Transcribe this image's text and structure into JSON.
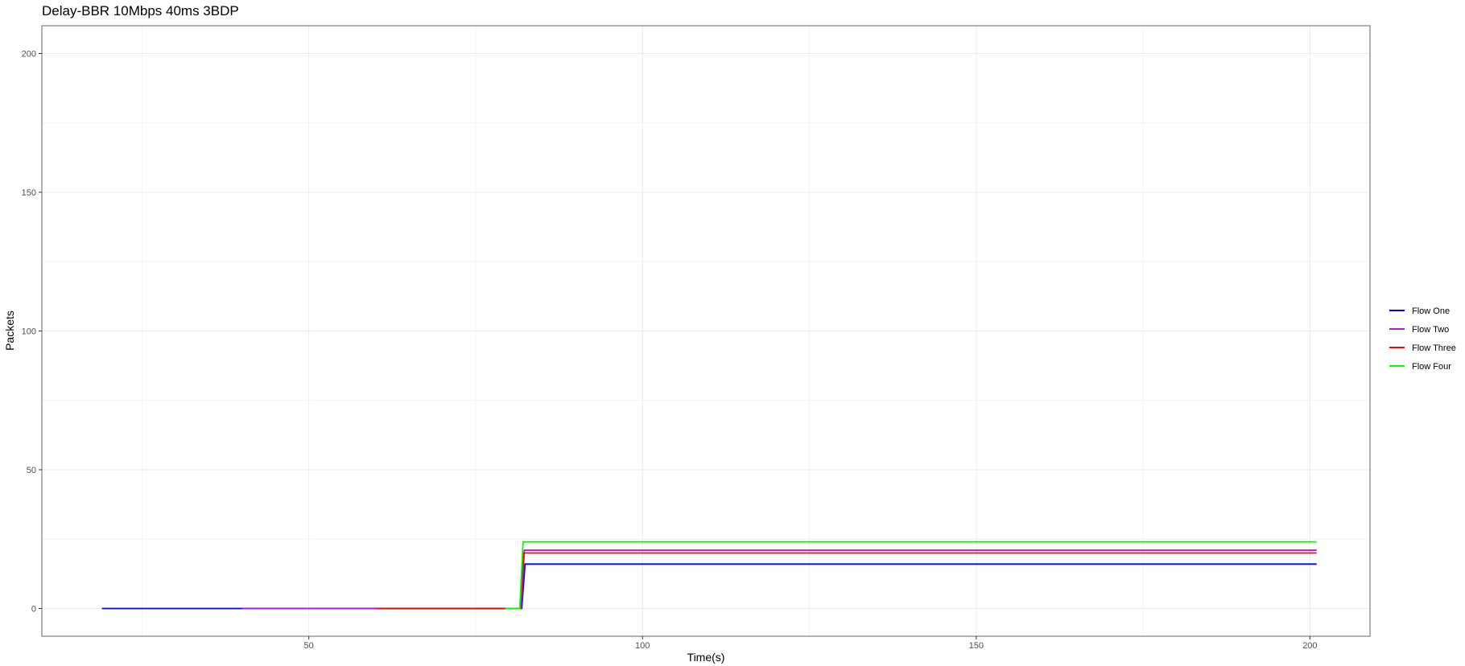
{
  "chart_data": {
    "type": "line",
    "title": "Delay-BBR 10Mbps 40ms 3BDP",
    "xlabel": "Time(s)",
    "ylabel": "Packets",
    "xlim": [
      10,
      209
    ],
    "ylim": [
      -10,
      210
    ],
    "x_ticks": [
      50,
      100,
      150,
      200
    ],
    "y_ticks": [
      0,
      50,
      100,
      150,
      200
    ],
    "x_minor": [
      25,
      75,
      125,
      175
    ],
    "y_minor": [
      25,
      75,
      125,
      175
    ],
    "grid": true,
    "legend_position": "right",
    "series": [
      {
        "name": "Flow One",
        "color": "#0000ff",
        "points": [
          [
            19,
            0
          ],
          [
            81.9,
            0
          ],
          [
            82.4,
            16
          ],
          [
            201,
            16
          ]
        ]
      },
      {
        "name": "Flow Two",
        "color": "#a020f0",
        "points": [
          [
            40,
            0
          ],
          [
            81.8,
            0
          ],
          [
            82.3,
            21
          ],
          [
            201,
            21
          ]
        ]
      },
      {
        "name": "Flow Three",
        "color": "#ff0000",
        "points": [
          [
            60,
            0
          ],
          [
            81.7,
            0
          ],
          [
            82.2,
            20
          ],
          [
            201,
            20
          ]
        ]
      },
      {
        "name": "Flow Four",
        "color": "#00ff00",
        "points": [
          [
            79.5,
            0
          ],
          [
            81.6,
            0
          ],
          [
            82.1,
            24
          ],
          [
            201,
            24
          ]
        ]
      }
    ]
  }
}
